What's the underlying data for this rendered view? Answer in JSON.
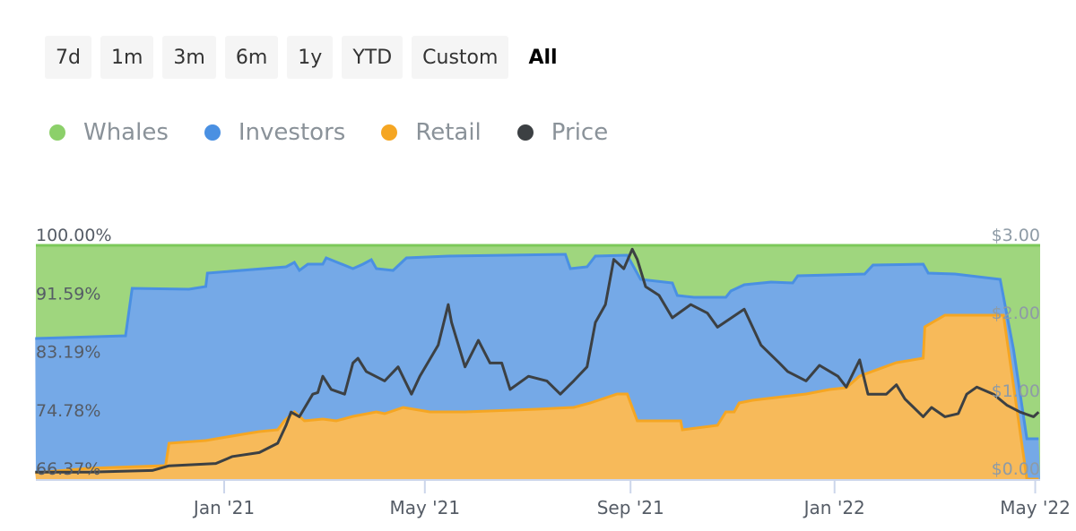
{
  "range_buttons": [
    "7d",
    "1m",
    "3m",
    "6m",
    "1y",
    "YTD",
    "Custom",
    "All"
  ],
  "active_range": "All",
  "chart_data": {
    "type": "area",
    "stacking": "percent",
    "legend": [
      "Whales",
      "Investors",
      "Retail",
      "Price"
    ],
    "legend_placement": "top-left",
    "colors": {
      "Whales": "#8cd06a",
      "Investors": "#4a90e2",
      "Retail": "#f5a623",
      "Price": "#3c4043"
    },
    "y_left": {
      "ticks": [
        "100.00%",
        "91.59%",
        "83.19%",
        "74.78%",
        "66.37%"
      ],
      "range": [
        66.37,
        100
      ]
    },
    "y_right": {
      "ticks": [
        "$3.00",
        "$2.00",
        "$1.00",
        "$0.00"
      ],
      "range": [
        0,
        3
      ]
    },
    "x_ticks": [
      {
        "label": "Jan '21",
        "date": "2021-01-01"
      },
      {
        "label": "May '21",
        "date": "2021-05-01"
      },
      {
        "label": "Sep '21",
        "date": "2021-09-01"
      },
      {
        "label": "Jan '22",
        "date": "2022-01-01"
      },
      {
        "label": "May '22",
        "date": "2022-05-01"
      }
    ],
    "x_range": [
      "2020-09-10",
      "2022-05-03"
    ],
    "investors_top_pct": [
      [
        "2020-09-10",
        86.6
      ],
      [
        "2020-11-03",
        86.99
      ],
      [
        "2020-11-07",
        93.82
      ],
      [
        "2020-12-11",
        93.69
      ],
      [
        "2020-12-21",
        94.07
      ],
      [
        "2020-12-22",
        96.01
      ],
      [
        "2021-02-07",
        96.91
      ],
      [
        "2021-02-12",
        97.55
      ],
      [
        "2021-02-15",
        96.39
      ],
      [
        "2021-02-20",
        97.29
      ],
      [
        "2021-03-01",
        97.29
      ],
      [
        "2021-03-03",
        98.2
      ],
      [
        "2021-03-19",
        96.65
      ],
      [
        "2021-03-25",
        97.29
      ],
      [
        "2021-03-30",
        97.94
      ],
      [
        "2021-04-02",
        96.65
      ],
      [
        "2021-04-12",
        96.39
      ],
      [
        "2021-04-20",
        98.2
      ],
      [
        "2021-05-15",
        98.45
      ],
      [
        "2021-07-24",
        98.71
      ],
      [
        "2021-07-27",
        96.65
      ],
      [
        "2021-08-06",
        96.91
      ],
      [
        "2021-08-11",
        98.45
      ],
      [
        "2021-08-30",
        98.58
      ],
      [
        "2021-09-07",
        95.1
      ],
      [
        "2021-09-26",
        94.59
      ],
      [
        "2021-09-29",
        92.78
      ],
      [
        "2021-10-09",
        92.53
      ],
      [
        "2021-10-28",
        92.53
      ],
      [
        "2021-10-31",
        93.43
      ],
      [
        "2021-11-08",
        94.33
      ],
      [
        "2021-11-24",
        94.72
      ],
      [
        "2021-12-07",
        94.59
      ],
      [
        "2021-12-10",
        95.62
      ],
      [
        "2022-01-19",
        95.88
      ],
      [
        "2022-01-24",
        97.17
      ],
      [
        "2022-02-23",
        97.29
      ],
      [
        "2022-02-26",
        96.01
      ],
      [
        "2022-03-14",
        95.88
      ],
      [
        "2022-04-10",
        95.1
      ],
      [
        "2022-04-18",
        85.05
      ],
      [
        "2022-04-26",
        72.17
      ],
      [
        "2022-05-03",
        72.17
      ]
    ],
    "retail_top_pct": [
      [
        "2020-09-10",
        67.27
      ],
      [
        "2020-10-12",
        67.92
      ],
      [
        "2020-11-27",
        68.3
      ],
      [
        "2020-11-29",
        71.52
      ],
      [
        "2020-12-21",
        71.91
      ],
      [
        "2021-01-12",
        72.81
      ],
      [
        "2021-01-22",
        73.2
      ],
      [
        "2021-02-02",
        73.46
      ],
      [
        "2021-02-06",
        74.75
      ],
      [
        "2021-02-12",
        76.03
      ],
      [
        "2021-02-18",
        74.75
      ],
      [
        "2021-03-01",
        75.0
      ],
      [
        "2021-03-09",
        74.75
      ],
      [
        "2021-03-19",
        75.39
      ],
      [
        "2021-04-02",
        76.03
      ],
      [
        "2021-04-07",
        75.78
      ],
      [
        "2021-04-18",
        76.68
      ],
      [
        "2021-05-04",
        76.03
      ],
      [
        "2021-05-25",
        76.03
      ],
      [
        "2021-07-07",
        76.42
      ],
      [
        "2021-07-29",
        76.68
      ],
      [
        "2021-08-08",
        77.32
      ],
      [
        "2021-08-24",
        78.61
      ],
      [
        "2021-08-30",
        78.61
      ],
      [
        "2021-09-05",
        74.75
      ],
      [
        "2021-10-01",
        74.75
      ],
      [
        "2021-10-02",
        73.46
      ],
      [
        "2021-10-23",
        74.1
      ],
      [
        "2021-10-28",
        76.03
      ],
      [
        "2021-11-02",
        76.03
      ],
      [
        "2021-11-05",
        77.32
      ],
      [
        "2021-11-13",
        77.71
      ],
      [
        "2021-12-15",
        78.61
      ],
      [
        "2021-12-29",
        79.26
      ],
      [
        "2022-01-08",
        79.51
      ],
      [
        "2022-01-16",
        81.19
      ],
      [
        "2022-02-07",
        83.12
      ],
      [
        "2022-02-23",
        83.76
      ],
      [
        "2022-02-24",
        88.27
      ],
      [
        "2022-03-08",
        89.95
      ],
      [
        "2022-04-12",
        89.95
      ],
      [
        "2022-04-26",
        66.37
      ],
      [
        "2022-05-03",
        66.37
      ]
    ],
    "price_usd": [
      [
        "2020-09-10",
        0.09
      ],
      [
        "2020-10-12",
        0.09
      ],
      [
        "2020-11-19",
        0.11
      ],
      [
        "2020-11-29",
        0.17
      ],
      [
        "2020-12-27",
        0.2
      ],
      [
        "2021-01-06",
        0.29
      ],
      [
        "2021-01-22",
        0.34
      ],
      [
        "2021-02-02",
        0.46
      ],
      [
        "2021-02-07",
        0.69
      ],
      [
        "2021-02-10",
        0.86
      ],
      [
        "2021-02-15",
        0.8
      ],
      [
        "2021-02-23",
        1.09
      ],
      [
        "2021-02-26",
        1.11
      ],
      [
        "2021-03-01",
        1.32
      ],
      [
        "2021-03-06",
        1.15
      ],
      [
        "2021-03-14",
        1.09
      ],
      [
        "2021-03-19",
        1.49
      ],
      [
        "2021-03-22",
        1.55
      ],
      [
        "2021-03-27",
        1.38
      ],
      [
        "2021-04-07",
        1.26
      ],
      [
        "2021-04-15",
        1.44
      ],
      [
        "2021-04-23",
        1.09
      ],
      [
        "2021-04-28",
        1.32
      ],
      [
        "2021-05-09",
        1.72
      ],
      [
        "2021-05-15",
        2.24
      ],
      [
        "2021-05-17",
        2.01
      ],
      [
        "2021-05-25",
        1.44
      ],
      [
        "2021-06-02",
        1.78
      ],
      [
        "2021-06-09",
        1.49
      ],
      [
        "2021-06-16",
        1.49
      ],
      [
        "2021-06-21",
        1.15
      ],
      [
        "2021-07-02",
        1.32
      ],
      [
        "2021-07-13",
        1.26
      ],
      [
        "2021-07-21",
        1.09
      ],
      [
        "2021-07-29",
        1.26
      ],
      [
        "2021-08-06",
        1.44
      ],
      [
        "2021-08-11",
        2.01
      ],
      [
        "2021-08-17",
        2.24
      ],
      [
        "2021-08-22",
        2.82
      ],
      [
        "2021-08-28",
        2.7
      ],
      [
        "2021-09-02",
        2.95
      ],
      [
        "2021-09-05",
        2.82
      ],
      [
        "2021-09-10",
        2.47
      ],
      [
        "2021-09-18",
        2.36
      ],
      [
        "2021-09-26",
        2.07
      ],
      [
        "2021-10-07",
        2.24
      ],
      [
        "2021-10-17",
        2.13
      ],
      [
        "2021-10-23",
        1.95
      ],
      [
        "2021-11-08",
        2.18
      ],
      [
        "2021-11-18",
        1.72
      ],
      [
        "2021-11-29",
        1.49
      ],
      [
        "2021-12-04",
        1.38
      ],
      [
        "2021-12-15",
        1.26
      ],
      [
        "2021-12-23",
        1.46
      ],
      [
        "2022-01-03",
        1.32
      ],
      [
        "2022-01-08",
        1.18
      ],
      [
        "2022-01-16",
        1.53
      ],
      [
        "2022-01-21",
        1.09
      ],
      [
        "2022-02-01",
        1.09
      ],
      [
        "2022-02-07",
        1.21
      ],
      [
        "2022-02-12",
        1.03
      ],
      [
        "2022-02-23",
        0.8
      ],
      [
        "2022-02-28",
        0.92
      ],
      [
        "2022-03-08",
        0.8
      ],
      [
        "2022-03-16",
        0.84
      ],
      [
        "2022-03-21",
        1.09
      ],
      [
        "2022-03-27",
        1.18
      ],
      [
        "2022-04-06",
        1.09
      ],
      [
        "2022-04-14",
        0.95
      ],
      [
        "2022-04-22",
        0.86
      ],
      [
        "2022-04-30",
        0.8
      ],
      [
        "2022-05-03",
        0.86
      ]
    ]
  }
}
